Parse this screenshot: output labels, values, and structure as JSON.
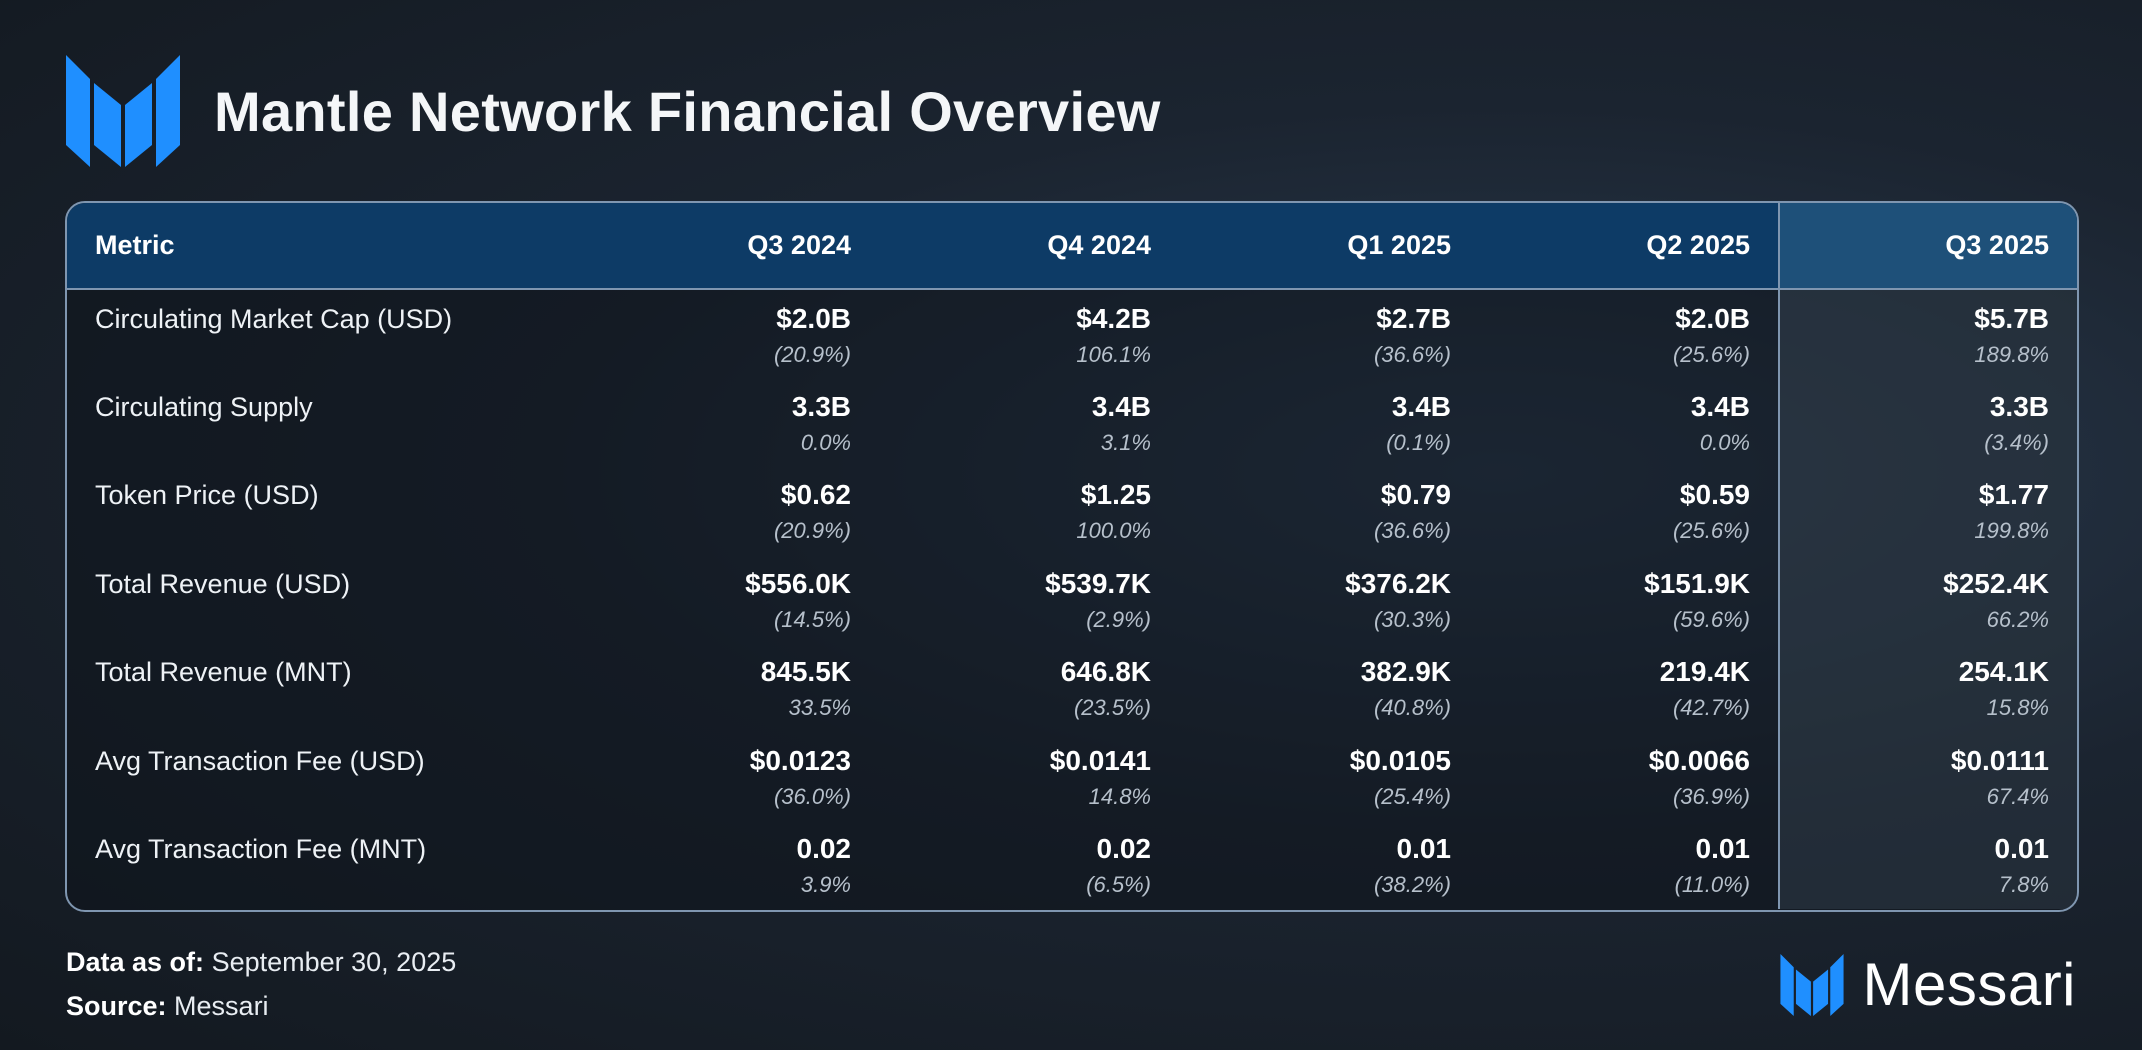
{
  "header": {
    "title": "Mantle Network Financial Overview"
  },
  "table": {
    "columns": [
      "Metric",
      "Q3 2024",
      "Q4 2024",
      "Q1 2025",
      "Q2 2025",
      "Q3 2025"
    ],
    "highlighted_column": "Q3 2025",
    "rows": [
      {
        "metric": "Circulating Market Cap (USD)",
        "values": [
          "$2.0B",
          "$4.2B",
          "$2.7B",
          "$2.0B",
          "$5.7B"
        ],
        "changes": [
          "(20.9%)",
          "106.1%",
          "(36.6%)",
          "(25.6%)",
          "189.8%"
        ]
      },
      {
        "metric": "Circulating Supply",
        "values": [
          "3.3B",
          "3.4B",
          "3.4B",
          "3.4B",
          "3.3B"
        ],
        "changes": [
          "0.0%",
          "3.1%",
          "(0.1%)",
          "0.0%",
          "(3.4%)"
        ]
      },
      {
        "metric": "Token Price (USD)",
        "values": [
          "$0.62",
          "$1.25",
          "$0.79",
          "$0.59",
          "$1.77"
        ],
        "changes": [
          "(20.9%)",
          "100.0%",
          "(36.6%)",
          "(25.6%)",
          "199.8%"
        ]
      },
      {
        "metric": "Total Revenue (USD)",
        "values": [
          "$556.0K",
          "$539.7K",
          "$376.2K",
          "$151.9K",
          "$252.4K"
        ],
        "changes": [
          "(14.5%)",
          "(2.9%)",
          "(30.3%)",
          "(59.6%)",
          "66.2%"
        ]
      },
      {
        "metric": "Total Revenue (MNT)",
        "values": [
          "845.5K",
          "646.8K",
          "382.9K",
          "219.4K",
          "254.1K"
        ],
        "changes": [
          "33.5%",
          "(23.5%)",
          "(40.8%)",
          "(42.7%)",
          "15.8%"
        ]
      },
      {
        "metric": "Avg Transaction Fee (USD)",
        "values": [
          "$0.0123",
          "$0.0141",
          "$0.0105",
          "$0.0066",
          "$0.0111"
        ],
        "changes": [
          "(36.0%)",
          "14.8%",
          "(25.4%)",
          "(36.9%)",
          "67.4%"
        ]
      },
      {
        "metric": "Avg Transaction Fee (MNT)",
        "values": [
          "0.02",
          "0.02",
          "0.01",
          "0.01",
          "0.01"
        ],
        "changes": [
          "3.9%",
          "(6.5%)",
          "(38.2%)",
          "(11.0%)",
          "7.8%"
        ]
      }
    ]
  },
  "footer": {
    "data_as_of_label": "Data as of:",
    "data_as_of_value": "September 30, 2025",
    "source_label": "Source:",
    "source_value": "Messari"
  },
  "brand": {
    "name": "Messari",
    "icon": "messari-logo-icon"
  },
  "colors": {
    "accent_blue": "#1e90ff",
    "header_row": "#0d3b66",
    "highlight_header": "#1e5079",
    "border": "#7f96b0"
  }
}
